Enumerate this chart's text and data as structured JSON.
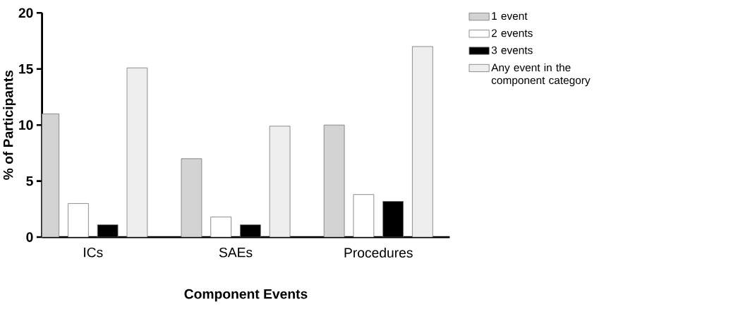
{
  "chart_data": {
    "type": "bar",
    "xlabel": "Component  Events",
    "ylabel": "% of Participants",
    "categories": [
      "ICs",
      "SAEs",
      "Procedures"
    ],
    "series": [
      {
        "name": "1 event",
        "color": "#d3d3d3",
        "values": [
          11,
          7,
          10
        ]
      },
      {
        "name": "2 events",
        "color": "#ffffff",
        "values": [
          3,
          1.8,
          3.8
        ]
      },
      {
        "name": "3 events",
        "color": "#000000",
        "values": [
          1.1,
          1.1,
          3.2
        ]
      },
      {
        "name": "Any event in the component category",
        "color": "#eeeeee",
        "values": [
          15.1,
          9.9,
          17
        ]
      }
    ],
    "ylim": [
      0,
      20
    ],
    "yticks": [
      0,
      5,
      10,
      15,
      20
    ],
    "grid": false,
    "legend": "top right"
  }
}
